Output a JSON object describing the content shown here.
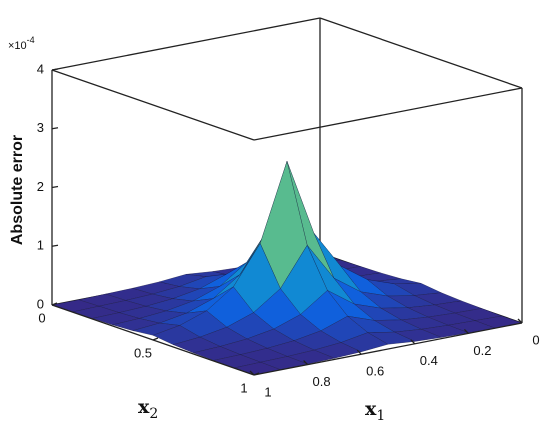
{
  "chart_data": {
    "type": "surface",
    "zlabel": "Absolute error",
    "xlabel": {
      "text": "x",
      "subscript": "1"
    },
    "ylabel": {
      "text": "x",
      "subscript": "2"
    },
    "z_multiplier": {
      "base": "×10",
      "exponent": "-4"
    },
    "x": [
      0,
      0.1,
      0.2,
      0.3,
      0.4,
      0.5,
      0.6,
      0.7,
      0.8,
      0.9,
      1
    ],
    "y": [
      0,
      0.1,
      0.2,
      0.3,
      0.4,
      0.5,
      0.6,
      0.7,
      0.8,
      0.9,
      1
    ],
    "z": [
      [
        0,
        0,
        0.01,
        0.02,
        0.04,
        0.08,
        0.04,
        0.02,
        0.01,
        0,
        0
      ],
      [
        0,
        0.01,
        0.02,
        0.04,
        0.08,
        0.16,
        0.08,
        0.04,
        0.02,
        0.01,
        0
      ],
      [
        0.01,
        0.02,
        0.04,
        0.08,
        0.16,
        0.32,
        0.16,
        0.08,
        0.04,
        0.02,
        0.01
      ],
      [
        0.02,
        0.04,
        0.08,
        0.16,
        0.32,
        0.64,
        0.32,
        0.16,
        0.08,
        0.04,
        0.02
      ],
      [
        0.04,
        0.08,
        0.16,
        0.32,
        0.64,
        1.29,
        0.64,
        0.32,
        0.16,
        0.08,
        0.04
      ],
      [
        0.08,
        0.16,
        0.32,
        0.64,
        1.29,
        2.6,
        1.29,
        0.64,
        0.32,
        0.16,
        0.08
      ],
      [
        0.04,
        0.08,
        0.16,
        0.32,
        0.64,
        1.29,
        0.64,
        0.32,
        0.16,
        0.08,
        0.04
      ],
      [
        0.02,
        0.04,
        0.08,
        0.16,
        0.32,
        0.64,
        0.32,
        0.16,
        0.08,
        0.04,
        0.02
      ],
      [
        0.01,
        0.02,
        0.04,
        0.08,
        0.16,
        0.32,
        0.16,
        0.08,
        0.04,
        0.02,
        0.01
      ],
      [
        0,
        0.01,
        0.02,
        0.04,
        0.08,
        0.16,
        0.08,
        0.04,
        0.02,
        0.01,
        0
      ],
      [
        0,
        0,
        0.01,
        0.02,
        0.04,
        0.08,
        0.04,
        0.02,
        0.01,
        0,
        0
      ]
    ],
    "xlim": [
      0,
      1
    ],
    "xticks": [
      0,
      0.2,
      0.4,
      0.6,
      0.8,
      1
    ],
    "ylim": [
      0,
      1
    ],
    "yticks": [
      0,
      0.5,
      1
    ],
    "zlim": [
      0,
      4
    ],
    "zticks": [
      0,
      1,
      2,
      3,
      4
    ],
    "colormap": [
      "#352a87",
      "#0f5cdd",
      "#1481d6",
      "#06a4ca",
      "#2eb7a4",
      "#87bf77",
      "#d1bb59",
      "#fec832",
      "#f9fb0e"
    ]
  }
}
